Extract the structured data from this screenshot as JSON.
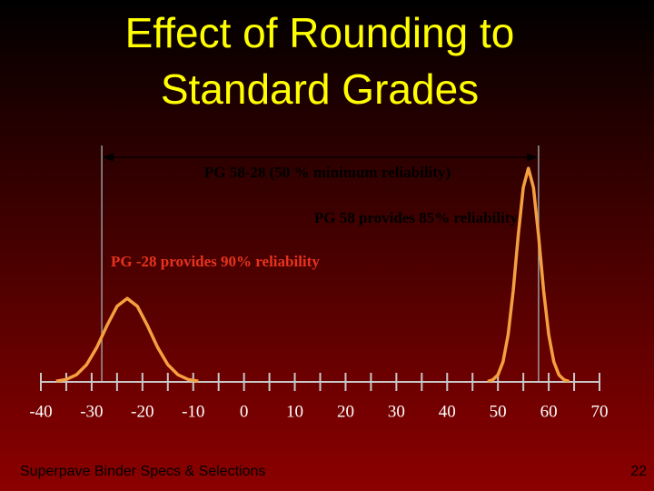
{
  "chart_data": {
    "type": "line",
    "title_lines": [
      "Effect of Rounding to",
      "Standard Grades"
    ],
    "annotations": [
      {
        "text": "PG 58-28 (50 % minimum reliability)",
        "color": "#000000"
      },
      {
        "text": "PG 58 provides 85% reliability",
        "color": "#000000"
      },
      {
        "text": "PG -28 provides 90% reliability",
        "color": "#e8331c"
      }
    ],
    "reference_lines": [
      -28,
      58
    ],
    "xlim": [
      -40,
      70
    ],
    "xticks": [
      -40,
      -30,
      -20,
      -10,
      0,
      10,
      20,
      30,
      40,
      50,
      60,
      70
    ],
    "xminorticks": [
      -35,
      -25,
      -15,
      -5,
      5,
      15,
      25,
      35,
      45,
      55,
      65
    ],
    "ylim": [
      0,
      100
    ],
    "series": [
      {
        "color": "#f5a040",
        "x": [
          -37,
          -35,
          -33,
          -31,
          -29,
          -27,
          -25,
          -23,
          -21,
          -19,
          -17,
          -15,
          -13,
          -11,
          -9
        ],
        "values": [
          0.3,
          1.0,
          2.9,
          7.0,
          14.0,
          22.9,
          30.8,
          34,
          30.8,
          22.9,
          14.0,
          7.0,
          2.9,
          1.0,
          0.3
        ]
      },
      {
        "color": "#f5a040",
        "x": [
          48,
          49,
          50,
          51,
          52,
          53,
          54,
          55,
          56,
          57,
          58,
          59,
          60,
          61,
          62,
          63,
          64
        ],
        "values": [
          0.2,
          0.9,
          2.9,
          8.2,
          19.2,
          37.1,
          59.6,
          79.2,
          87,
          79.2,
          59.6,
          37.1,
          19.2,
          8.2,
          2.9,
          0.9,
          0.2
        ]
      }
    ],
    "footer": "Superpave Binder Specs & Selections",
    "page_number": "22"
  }
}
